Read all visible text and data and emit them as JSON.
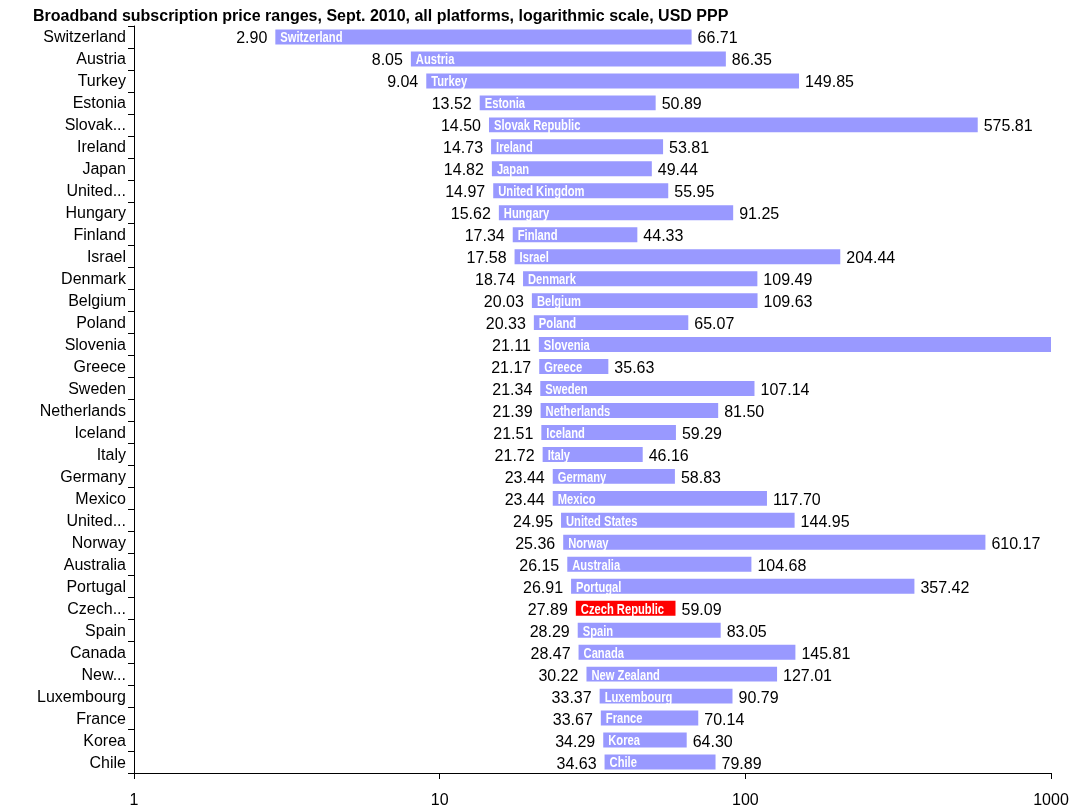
{
  "chart_data": {
    "type": "bar",
    "orientation": "horizontal",
    "title": "Broadband subscription price ranges, Sept. 2010, all platforms, logarithmic scale, USD PPP",
    "log": "x",
    "categories": [
      "Switzerland",
      "Austria",
      "Turkey",
      "Estonia",
      "Slovak...",
      "Ireland",
      "Japan",
      "United...",
      "Hungary",
      "Finland",
      "Israel",
      "Denmark",
      "Belgium",
      "Poland",
      "Slovenia",
      "Greece",
      "Sweden",
      "Netherlands",
      "Iceland",
      "Italy",
      "Germany",
      "Mexico",
      "United...",
      "Norway",
      "Australia",
      "Portugal",
      "Czech...",
      "Spain",
      "Canada",
      "New...",
      "Luxembourg",
      "France",
      "Korea",
      "Chile"
    ],
    "base": [
      2.9,
      8.05,
      9.04,
      13.52,
      14.5,
      14.73,
      14.82,
      14.97,
      15.62,
      17.34,
      17.58,
      18.74,
      20.03,
      20.33,
      21.11,
      21.17,
      21.34,
      21.39,
      21.51,
      21.72,
      23.44,
      23.44,
      24.95,
      25.36,
      26.15,
      26.91,
      27.89,
      28.29,
      28.47,
      30.22,
      33.37,
      33.67,
      34.29,
      34.63
    ],
    "values": [
      63.81,
      78.3,
      140.81,
      37.37,
      561.31,
      39.08,
      34.62,
      40.98,
      75.63,
      26.99,
      186.86,
      90.75,
      89.6,
      44.74,
      978.89,
      14.46,
      85.8,
      60.11,
      37.78,
      24.44,
      35.39,
      94.26,
      120.0,
      584.81,
      78.53,
      330.51,
      31.2,
      54.76,
      117.34,
      96.79,
      57.42,
      36.47,
      30.01,
      45.26
    ],
    "colors": [
      "#9999ff",
      "#9999ff",
      "#9999ff",
      "#9999ff",
      "#9999ff",
      "#9999ff",
      "#9999ff",
      "#9999ff",
      "#9999ff",
      "#9999ff",
      "#9999ff",
      "#9999ff",
      "#9999ff",
      "#9999ff",
      "#9999ff",
      "#9999ff",
      "#9999ff",
      "#9999ff",
      "#9999ff",
      "#9999ff",
      "#9999ff",
      "#9999ff",
      "#9999ff",
      "#9999ff",
      "#9999ff",
      "#9999ff",
      "#ff0000",
      "#9999ff",
      "#9999ff",
      "#9999ff",
      "#9999ff",
      "#9999ff",
      "#9999ff",
      "#9999ff"
    ],
    "xlim": [
      1,
      1000
    ],
    "xticks": [
      1,
      10,
      100,
      1000
    ],
    "annotations": [
      {
        "text": "2.90",
        "x": 2.9,
        "y": "Switzerland"
      },
      {
        "text": "Switzerland",
        "x": 2.9,
        "y": "Switzerland"
      },
      {
        "text": "66.71",
        "x": 66.71,
        "y": "Switzerland"
      },
      {
        "text": "8.05",
        "x": 8.05,
        "y": "Austria"
      },
      {
        "text": "Austria",
        "x": 8.05,
        "y": "Austria"
      },
      {
        "text": "86.35",
        "x": 86.35,
        "y": "Austria"
      },
      {
        "text": "9.04",
        "x": 9.04,
        "y": "Turkey"
      },
      {
        "text": "Turkey",
        "x": 9.04,
        "y": "Turkey"
      },
      {
        "text": "149.85",
        "x": 149.85,
        "y": "Turkey"
      },
      {
        "text": "13.52",
        "x": 13.52,
        "y": "Estonia"
      },
      {
        "text": "Estonia",
        "x": 13.52,
        "y": "Estonia"
      },
      {
        "text": "50.89",
        "x": 50.89,
        "y": "Estonia"
      },
      {
        "text": "14.50",
        "x": 14.5,
        "y": "Slovak..."
      },
      {
        "text": "Slovak Republic",
        "x": 14.5,
        "y": "Slovak..."
      },
      {
        "text": "575.81",
        "x": 575.81,
        "y": "Slovak..."
      },
      {
        "text": "14.73",
        "x": 14.73,
        "y": "Ireland"
      },
      {
        "text": "Ireland",
        "x": 14.73,
        "y": "Ireland"
      },
      {
        "text": "53.81",
        "x": 53.81,
        "y": "Ireland"
      },
      {
        "text": "14.82",
        "x": 14.82,
        "y": "Japan"
      },
      {
        "text": "Japan",
        "x": 14.82,
        "y": "Japan"
      },
      {
        "text": "49.44",
        "x": 49.44,
        "y": "Japan"
      },
      {
        "text": "14.97",
        "x": 14.97,
        "y": "United..."
      },
      {
        "text": "United Kingdom",
        "x": 14.97,
        "y": "United..."
      },
      {
        "text": "55.95",
        "x": 55.95,
        "y": "United..."
      },
      {
        "text": "15.62",
        "x": 15.62,
        "y": "Hungary"
      },
      {
        "text": "Hungary",
        "x": 15.62,
        "y": "Hungary"
      },
      {
        "text": "91.25",
        "x": 91.25,
        "y": "Hungary"
      },
      {
        "text": "17.34",
        "x": 17.34,
        "y": "Finland"
      },
      {
        "text": "Finland",
        "x": 17.34,
        "y": "Finland"
      },
      {
        "text": "44.33",
        "x": 44.33,
        "y": "Finland"
      },
      {
        "text": "17.58",
        "x": 17.58,
        "y": "Israel"
      },
      {
        "text": "Israel",
        "x": 17.58,
        "y": "Israel"
      },
      {
        "text": "204.44",
        "x": 204.44,
        "y": "Israel"
      },
      {
        "text": "18.74",
        "x": 18.74,
        "y": "Denmark"
      },
      {
        "text": "Denmark",
        "x": 18.74,
        "y": "Denmark"
      },
      {
        "text": "109.49",
        "x": 109.49,
        "y": "Denmark"
      },
      {
        "text": "20.03",
        "x": 20.03,
        "y": "Belgium"
      },
      {
        "text": "Belgium",
        "x": 20.03,
        "y": "Belgium"
      },
      {
        "text": "109.63",
        "x": 109.63,
        "y": "Belgium"
      },
      {
        "text": "20.33",
        "x": 20.33,
        "y": "Poland"
      },
      {
        "text": "Poland",
        "x": 20.33,
        "y": "Poland"
      },
      {
        "text": "65.07",
        "x": 65.07,
        "y": "Poland"
      },
      {
        "text": "21.11",
        "x": 21.11,
        "y": "Slovenia"
      },
      {
        "text": "Slovenia",
        "x": 21.11,
        "y": "Slovenia"
      },
      {
        "text": "21.17",
        "x": 21.17,
        "y": "Greece"
      },
      {
        "text": "Greece",
        "x": 21.17,
        "y": "Greece"
      },
      {
        "text": "35.63",
        "x": 35.63,
        "y": "Greece"
      },
      {
        "text": "21.34",
        "x": 21.34,
        "y": "Sweden"
      },
      {
        "text": "Sweden",
        "x": 21.34,
        "y": "Sweden"
      },
      {
        "text": "107.14",
        "x": 107.14,
        "y": "Sweden"
      },
      {
        "text": "21.39",
        "x": 21.39,
        "y": "Netherlands"
      },
      {
        "text": "Netherlands",
        "x": 21.39,
        "y": "Netherlands"
      },
      {
        "text": "81.50",
        "x": 81.5,
        "y": "Netherlands"
      },
      {
        "text": "21.51",
        "x": 21.51,
        "y": "Iceland"
      },
      {
        "text": "Iceland",
        "x": 21.51,
        "y": "Iceland"
      },
      {
        "text": "59.29",
        "x": 59.29,
        "y": "Iceland"
      },
      {
        "text": "21.72",
        "x": 21.72,
        "y": "Italy"
      },
      {
        "text": "Italy",
        "x": 21.72,
        "y": "Italy"
      },
      {
        "text": "46.16",
        "x": 46.16,
        "y": "Italy"
      },
      {
        "text": "23.44",
        "x": 23.44,
        "y": "Germany"
      },
      {
        "text": "Germany",
        "x": 23.44,
        "y": "Germany"
      },
      {
        "text": "58.83",
        "x": 58.83,
        "y": "Germany"
      },
      {
        "text": "23.44",
        "x": 23.44,
        "y": "Mexico"
      },
      {
        "text": "Mexico",
        "x": 23.44,
        "y": "Mexico"
      },
      {
        "text": "117.70",
        "x": 117.7,
        "y": "Mexico"
      },
      {
        "text": "24.95",
        "x": 24.95
      },
      {
        "text": "United States",
        "x": 24.95
      },
      {
        "text": "144.95",
        "x": 144.95
      },
      {
        "text": "25.36",
        "x": 25.36,
        "y": "Norway"
      },
      {
        "text": "Norway",
        "x": 25.36,
        "y": "Norway"
      },
      {
        "text": "610.17",
        "x": 610.17,
        "y": "Norway"
      },
      {
        "text": "26.15",
        "x": 26.15,
        "y": "Australia"
      },
      {
        "text": "Australia",
        "x": 26.15,
        "y": "Australia"
      },
      {
        "text": "104.68",
        "x": 104.68,
        "y": "Australia"
      },
      {
        "text": "26.91",
        "x": 26.91,
        "y": "Portugal"
      },
      {
        "text": "Portugal",
        "x": 26.91,
        "y": "Portugal"
      },
      {
        "text": "357.42",
        "x": 357.42,
        "y": "Portugal"
      },
      {
        "text": "27.89",
        "x": 27.89,
        "y": "Czech..."
      },
      {
        "text": "Czech Republic",
        "x": 27.89,
        "y": "Czech..."
      },
      {
        "text": "59.09",
        "x": 59.09,
        "y": "Czech..."
      },
      {
        "text": "28.29",
        "x": 28.29,
        "y": "Spain"
      },
      {
        "text": "Spain",
        "x": 28.29,
        "y": "Spain"
      },
      {
        "text": "83.05",
        "x": 83.05,
        "y": "Spain"
      },
      {
        "text": "28.47",
        "x": 28.47,
        "y": "Canada"
      },
      {
        "text": "Canada",
        "x": 28.47,
        "y": "Canada"
      },
      {
        "text": "145.81",
        "x": 145.81,
        "y": "Canada"
      },
      {
        "text": "30.22",
        "x": 30.22,
        "y": "New..."
      },
      {
        "text": "New Zealand",
        "x": 30.22,
        "y": "New..."
      },
      {
        "text": "127.01",
        "x": 127.01,
        "y": "New..."
      },
      {
        "text": "33.37",
        "x": 33.37,
        "y": "Luxembourg"
      },
      {
        "text": "Luxembourg",
        "x": 33.37,
        "y": "Luxembourg"
      },
      {
        "text": "90.79",
        "x": 90.79,
        "y": "Luxembourg"
      },
      {
        "text": "33.67",
        "x": 33.67,
        "y": "France"
      },
      {
        "text": "France",
        "x": 33.67,
        "y": "France"
      },
      {
        "text": "70.14",
        "x": 70.14,
        "y": "France"
      },
      {
        "text": "34.29",
        "x": 34.29,
        "y": "Korea"
      },
      {
        "text": "Korea",
        "x": 34.29,
        "y": "Korea"
      },
      {
        "text": "64.30",
        "x": 64.3,
        "y": "Korea"
      },
      {
        "text": "34.63",
        "x": 34.63,
        "y": "Chile"
      },
      {
        "text": "Chile",
        "x": 34.63,
        "y": "Chile"
      },
      {
        "text": "79.89",
        "x": 79.89,
        "y": "Chile"
      }
    ]
  }
}
